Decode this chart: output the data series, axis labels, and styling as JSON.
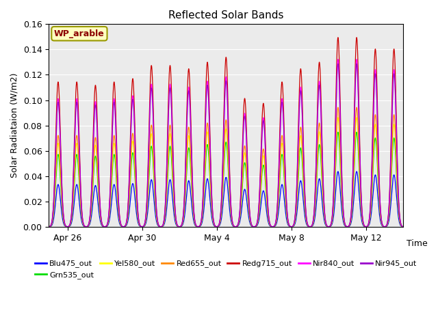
{
  "title": "Reflected Solar Bands",
  "xlabel": "Time",
  "ylabel": "Solar Radiataion (W/m2)",
  "annotation": "WP_arable",
  "ylim": [
    0,
    0.16
  ],
  "background_color": "#ebebeb",
  "series": [
    {
      "label": "Blu475_out",
      "color": "#0000ff",
      "scale": 0.038
    },
    {
      "label": "Grn535_out",
      "color": "#00dd00",
      "scale": 0.065
    },
    {
      "label": "Yel580_out",
      "color": "#ffff00",
      "scale": 0.075
    },
    {
      "label": "Red655_out",
      "color": "#ff8800",
      "scale": 0.082
    },
    {
      "label": "Redg715_out",
      "color": "#cc0000",
      "scale": 0.13
    },
    {
      "label": "Nir840_out",
      "color": "#ff00ff",
      "scale": 0.115
    },
    {
      "label": "Nir945_out",
      "color": "#9900cc",
      "scale": 0.112
    }
  ],
  "x_tick_labels": [
    "Apr 26",
    "Apr 30",
    "May 4",
    "May 8",
    "May 12"
  ],
  "n_days": 19,
  "points_per_day": 200,
  "day_scales": [
    0.88,
    0.88,
    0.86,
    0.88,
    0.9,
    0.98,
    0.98,
    0.96,
    1.0,
    1.03,
    0.78,
    0.75,
    0.88,
    0.96,
    1.0,
    1.15,
    1.15,
    1.08,
    1.08
  ]
}
